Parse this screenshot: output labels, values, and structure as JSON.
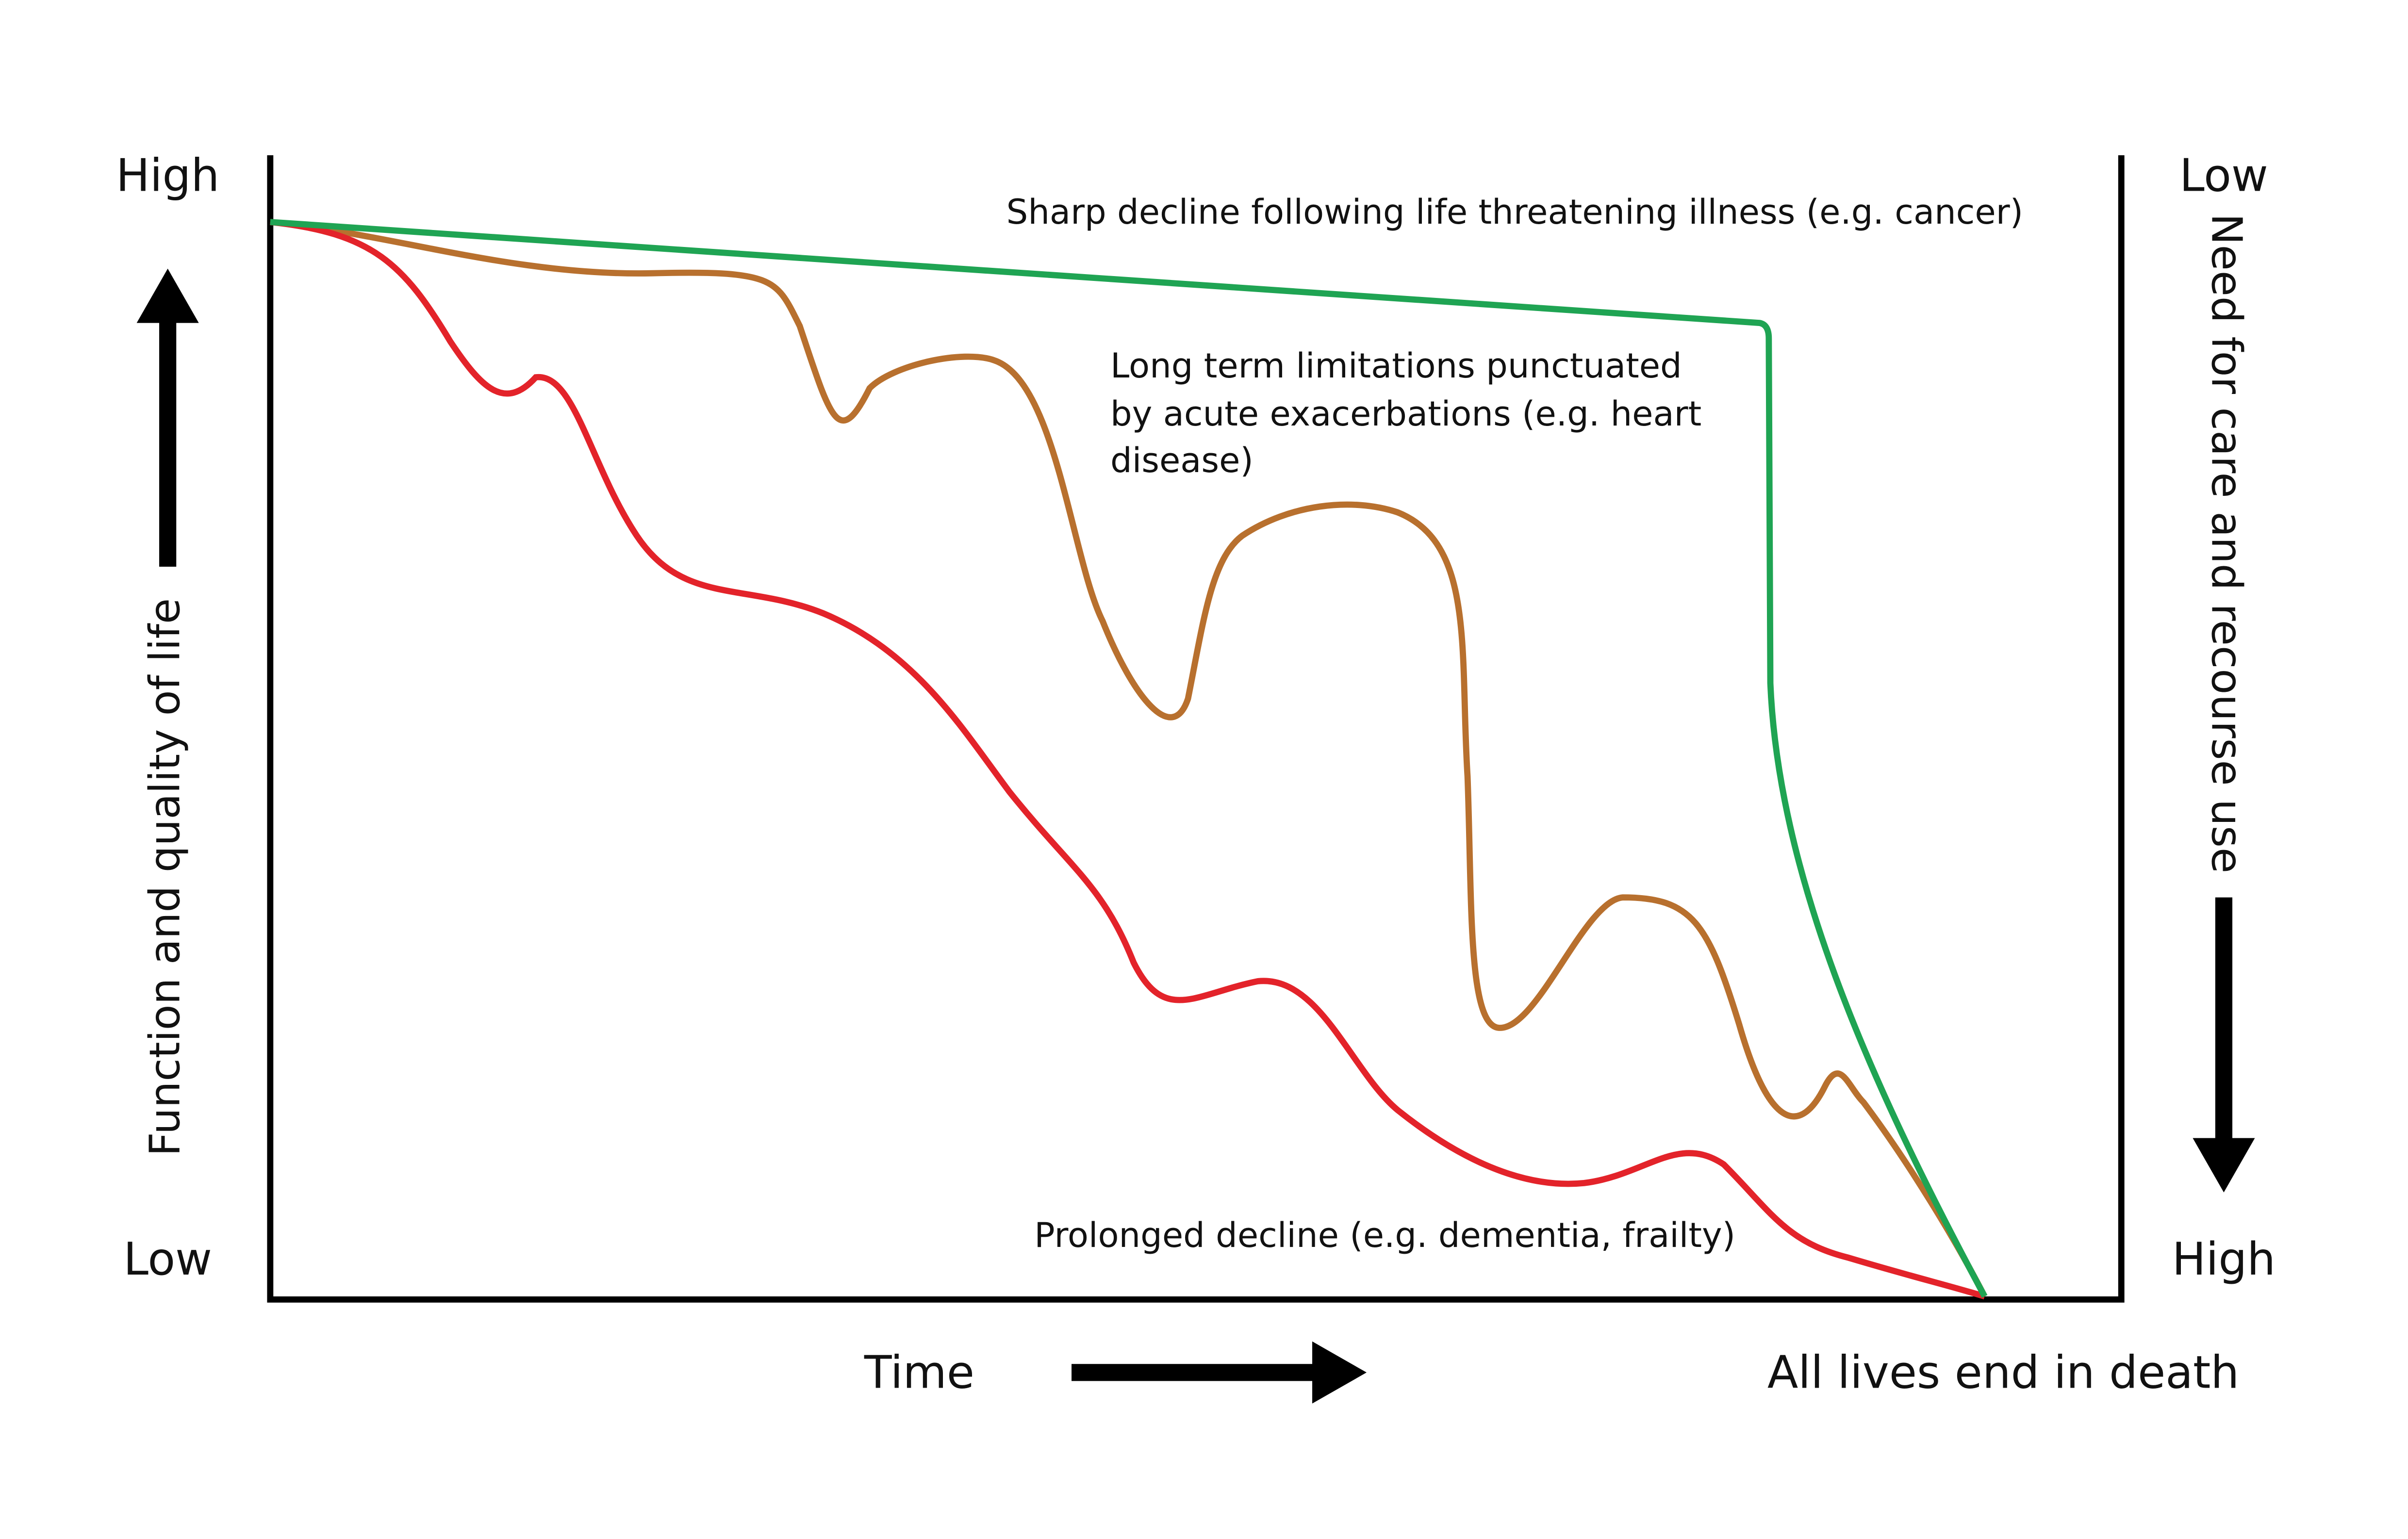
{
  "left_axis": {
    "top": "High",
    "bottom": "Low",
    "title": "Function and quality of life"
  },
  "right_axis": {
    "top": "Low",
    "bottom": "High",
    "title": "Need for care and recourse use"
  },
  "x_axis": {
    "label": "Time",
    "end": "All lives end in death"
  },
  "curve_labels": {
    "sharp": "Sharp decline following life threatening illness (e.g. cancer)",
    "long_term": [
      "Long term limitations punctuated",
      "by acute exacerbations (e.g. heart",
      "disease)"
    ],
    "prolonged": "Prolonged decline (e.g. dementia, frailty)"
  }
}
